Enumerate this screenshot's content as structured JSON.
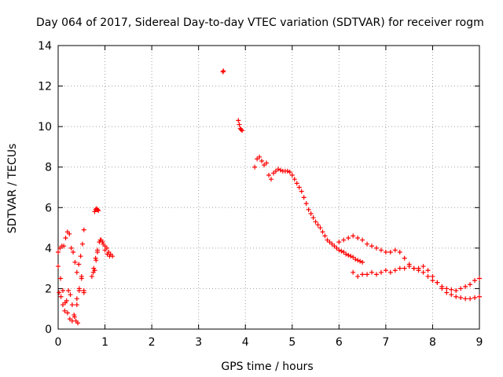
{
  "chart_data": {
    "type": "scatter",
    "title": "Day 064 of 2017, Sidereal Day-to-day VTEC variation (SDTVAR) for receiver rogm",
    "xlabel": "GPS time / hours",
    "ylabel": "SDTVAR / TECUs",
    "xlim": [
      0,
      9
    ],
    "ylim": [
      0,
      14
    ],
    "xticks": [
      "0",
      "1",
      "2",
      "3",
      "4",
      "5",
      "6",
      "7",
      "8",
      "9"
    ],
    "yticks": [
      "0",
      "2",
      "4",
      "6",
      "8",
      "10",
      "12",
      "14"
    ],
    "grid": true,
    "marker": "+",
    "color": "#ff0000",
    "series_segments": [
      {
        "name": "early-a",
        "x": [
          0.0,
          0.05,
          0.1,
          0.15,
          0.2,
          0.25,
          0.3,
          0.35,
          0.4,
          0.45,
          0.5,
          0.55
        ],
        "y": [
          3.1,
          2.5,
          1.9,
          1.3,
          0.8,
          0.5,
          0.4,
          0.6,
          1.2,
          2.0,
          2.6,
          1.9
        ]
      },
      {
        "name": "early-b",
        "x": [
          0.0,
          0.04,
          0.08,
          0.12,
          0.16,
          0.2,
          0.24,
          0.28,
          0.32,
          0.36,
          0.4,
          0.44,
          0.48,
          0.52,
          0.55
        ],
        "y": [
          3.8,
          4.0,
          4.1,
          4.1,
          4.5,
          4.8,
          4.7,
          4.0,
          3.8,
          3.3,
          2.8,
          3.2,
          3.6,
          4.2,
          4.9
        ]
      },
      {
        "name": "early-c",
        "x": [
          0.02,
          0.06,
          0.1,
          0.14,
          0.18,
          0.22,
          0.26,
          0.3,
          0.34,
          0.38,
          0.42
        ],
        "y": [
          1.8,
          1.6,
          1.2,
          0.9,
          1.4,
          1.9,
          1.7,
          1.2,
          0.7,
          0.4,
          0.3
        ]
      },
      {
        "name": "early-d",
        "x": [
          0.4,
          0.45,
          0.5,
          0.55
        ],
        "y": [
          1.5,
          1.9,
          2.5,
          1.8
        ]
      },
      {
        "name": "hump",
        "x": [
          0.72,
          0.76,
          0.8,
          0.84,
          0.88,
          0.92,
          0.96,
          1.0,
          1.04,
          1.08,
          1.12,
          1.16
        ],
        "y": [
          2.6,
          3.0,
          3.5,
          3.9,
          4.3,
          4.4,
          4.2,
          4.1,
          4.0,
          3.8,
          3.7,
          3.6
        ]
      },
      {
        "name": "hump-b",
        "x": [
          0.75,
          0.78,
          0.81,
          0.84,
          0.9,
          0.95,
          1.0,
          1.05,
          1.1
        ],
        "y": [
          2.8,
          2.9,
          3.4,
          3.8,
          4.4,
          4.3,
          3.9,
          3.7,
          3.6
        ]
      },
      {
        "name": "peak",
        "x": [
          0.78,
          0.8,
          0.82,
          0.84,
          0.86
        ],
        "y": [
          5.8,
          5.9,
          5.95,
          5.9,
          5.85
        ]
      },
      {
        "name": "mid",
        "x": [
          3.52,
          3.53,
          3.85,
          3.87,
          3.89,
          3.91,
          3.93
        ],
        "y": [
          12.7,
          12.75,
          10.3,
          10.1,
          9.9,
          9.85,
          9.8
        ]
      },
      {
        "name": "arc",
        "x": [
          4.2,
          4.25,
          4.3,
          4.35,
          4.4,
          4.45,
          4.5,
          4.55,
          4.6,
          4.65,
          4.7,
          4.75,
          4.8,
          4.85,
          4.9,
          4.95,
          5.0,
          5.05,
          5.1,
          5.15,
          5.2,
          5.25,
          5.3,
          5.35,
          5.4,
          5.45,
          5.5,
          5.55,
          5.6,
          5.65,
          5.7,
          5.75,
          5.8,
          5.85,
          5.9,
          5.95,
          6.0,
          6.05,
          6.1,
          6.15,
          6.2,
          6.25,
          6.3,
          6.35,
          6.4,
          6.45,
          6.5
        ],
        "y": [
          8.0,
          8.4,
          8.5,
          8.3,
          8.1,
          8.2,
          7.6,
          7.4,
          7.7,
          7.8,
          7.9,
          7.85,
          7.8,
          7.8,
          7.8,
          7.75,
          7.6,
          7.4,
          7.2,
          7.0,
          6.8,
          6.5,
          6.2,
          5.9,
          5.7,
          5.5,
          5.3,
          5.15,
          5.0,
          4.8,
          4.6,
          4.4,
          4.3,
          4.2,
          4.1,
          4.0,
          3.9,
          3.85,
          3.8,
          3.7,
          3.65,
          3.6,
          3.55,
          3.45,
          3.4,
          3.35,
          3.3
        ]
      },
      {
        "name": "late-a",
        "x": [
          6.0,
          6.1,
          6.2,
          6.3,
          6.4,
          6.5,
          6.6,
          6.7,
          6.8,
          6.9,
          7.0,
          7.1,
          7.2,
          7.3,
          7.4,
          7.5,
          7.6,
          7.7,
          7.8,
          7.9,
          8.0,
          8.1,
          8.2,
          8.3,
          8.4,
          8.5,
          8.6,
          8.7,
          8.8,
          8.9,
          9.0
        ],
        "y": [
          4.3,
          4.4,
          4.5,
          4.6,
          4.5,
          4.4,
          4.2,
          4.1,
          4.0,
          3.9,
          3.8,
          3.8,
          3.9,
          3.8,
          3.5,
          3.2,
          3.0,
          2.9,
          2.8,
          2.6,
          2.4,
          2.3,
          2.1,
          2.0,
          1.95,
          1.9,
          2.0,
          2.1,
          2.2,
          2.4,
          2.5
        ]
      },
      {
        "name": "late-b",
        "x": [
          6.3,
          6.4,
          6.5,
          6.6,
          6.7,
          6.8,
          6.9,
          7.0,
          7.1,
          7.2,
          7.3,
          7.4,
          7.5,
          7.6,
          7.7,
          7.8,
          7.9,
          8.0,
          8.1,
          8.2,
          8.3,
          8.4,
          8.5,
          8.6,
          8.7,
          8.8,
          8.9,
          9.0
        ],
        "y": [
          2.8,
          2.6,
          2.7,
          2.7,
          2.8,
          2.7,
          2.8,
          2.9,
          2.8,
          2.9,
          3.0,
          3.0,
          3.1,
          3.0,
          3.0,
          3.1,
          2.9,
          2.6,
          2.3,
          2.0,
          1.8,
          1.7,
          1.6,
          1.55,
          1.5,
          1.5,
          1.55,
          1.6
        ]
      }
    ]
  }
}
